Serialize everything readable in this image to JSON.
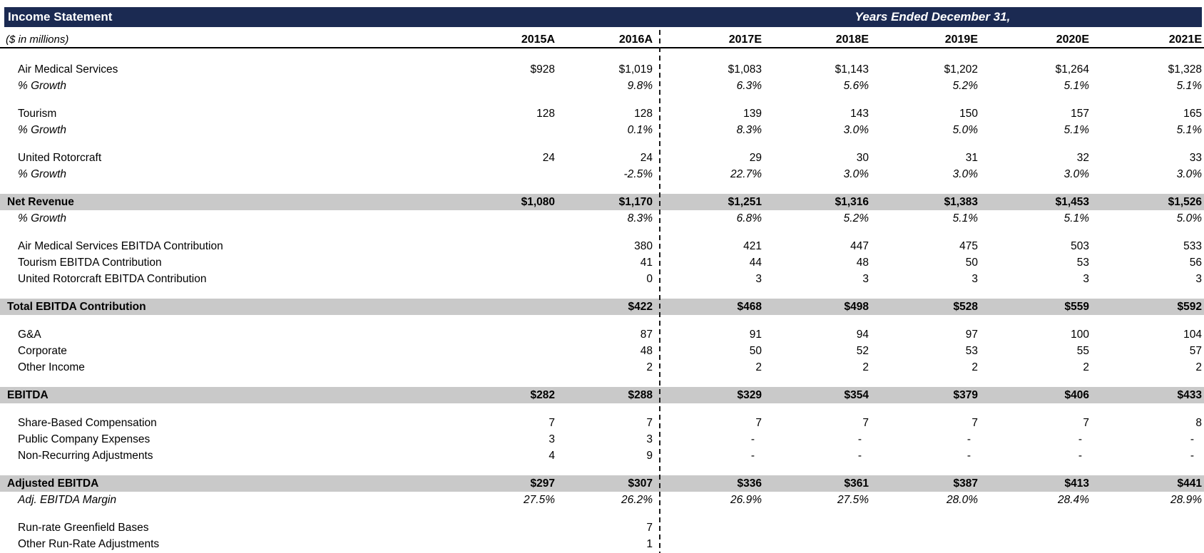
{
  "header": {
    "title": "Income Statement",
    "period_title": "Years Ended December 31,",
    "units_label": "($ in millions)",
    "columns": [
      "2015A",
      "2016A",
      "2017E",
      "2018E",
      "2019E",
      "2020E",
      "2021E"
    ]
  },
  "colors": {
    "title_bar": "#1b2a52",
    "subtotal_band": "#c9c9c9",
    "text": "#000000",
    "title_text": "#ffffff"
  },
  "table": {
    "rows": [
      {
        "label": "Air Medical Services",
        "style": "normal",
        "section_start": true,
        "values": [
          "$928",
          "$1,019",
          "$1,083",
          "$1,143",
          "$1,202",
          "$1,264",
          "$1,328"
        ]
      },
      {
        "label": "% Growth",
        "style": "growth",
        "section_start": false,
        "values": [
          "",
          "9.8%",
          "6.3%",
          "5.6%",
          "5.2%",
          "5.1%",
          "5.1%"
        ]
      },
      {
        "label": "Tourism",
        "style": "normal",
        "section_start": true,
        "values": [
          "128",
          "128",
          "139",
          "143",
          "150",
          "157",
          "165"
        ]
      },
      {
        "label": "% Growth",
        "style": "growth",
        "section_start": false,
        "values": [
          "",
          "0.1%",
          "8.3%",
          "3.0%",
          "5.0%",
          "5.1%",
          "5.1%"
        ]
      },
      {
        "label": "United Rotorcraft",
        "style": "normal",
        "section_start": true,
        "values": [
          "24",
          "24",
          "29",
          "30",
          "31",
          "32",
          "33"
        ]
      },
      {
        "label": "% Growth",
        "style": "growth",
        "section_start": false,
        "values": [
          "",
          "-2.5%",
          "22.7%",
          "3.0%",
          "3.0%",
          "3.0%",
          "3.0%"
        ]
      },
      {
        "label": "Net Revenue",
        "style": "total",
        "section_start": true,
        "values": [
          "$1,080",
          "$1,170",
          "$1,251",
          "$1,316",
          "$1,383",
          "$1,453",
          "$1,526"
        ]
      },
      {
        "label": "% Growth",
        "style": "growth",
        "section_start": false,
        "values": [
          "",
          "8.3%",
          "6.8%",
          "5.2%",
          "5.1%",
          "5.1%",
          "5.0%"
        ]
      },
      {
        "label": "Air Medical Services EBITDA Contribution",
        "style": "normal",
        "section_start": true,
        "values": [
          "",
          "380",
          "421",
          "447",
          "475",
          "503",
          "533"
        ]
      },
      {
        "label": "Tourism EBITDA Contribution",
        "style": "normal",
        "section_start": false,
        "values": [
          "",
          "41",
          "44",
          "48",
          "50",
          "53",
          "56"
        ]
      },
      {
        "label": "United Rotorcraft EBITDA Contribution",
        "style": "normal",
        "section_start": false,
        "values": [
          "",
          "0",
          "3",
          "3",
          "3",
          "3",
          "3"
        ]
      },
      {
        "label": "Total EBITDA Contribution",
        "style": "total",
        "section_start": true,
        "values": [
          "",
          "$422",
          "$468",
          "$498",
          "$528",
          "$559",
          "$592"
        ]
      },
      {
        "label": "G&A",
        "style": "normal",
        "section_start": true,
        "values": [
          "",
          "87",
          "91",
          "94",
          "97",
          "100",
          "104"
        ]
      },
      {
        "label": "Corporate",
        "style": "normal",
        "section_start": false,
        "values": [
          "",
          "48",
          "50",
          "52",
          "53",
          "55",
          "57"
        ]
      },
      {
        "label": "Other Income",
        "style": "normal",
        "section_start": false,
        "values": [
          "",
          "2",
          "2",
          "2",
          "2",
          "2",
          "2"
        ]
      },
      {
        "label": "EBITDA",
        "style": "total",
        "section_start": true,
        "values": [
          "$282",
          "$288",
          "$329",
          "$354",
          "$379",
          "$406",
          "$433"
        ]
      },
      {
        "label": "Share-Based Compensation",
        "style": "normal",
        "section_start": true,
        "values": [
          "7",
          "7",
          "7",
          "7",
          "7",
          "7",
          "8"
        ]
      },
      {
        "label": "Public Company Expenses",
        "style": "normal",
        "section_start": false,
        "values": [
          "3",
          "3",
          "-",
          "-",
          "-",
          "-",
          "-"
        ]
      },
      {
        "label": "Non-Recurring Adjustments",
        "style": "normal",
        "section_start": false,
        "values": [
          "4",
          "9",
          "-",
          "-",
          "-",
          "-",
          "-"
        ]
      },
      {
        "label": "Adjusted EBITDA",
        "style": "total",
        "section_start": true,
        "values": [
          "$297",
          "$307",
          "$336",
          "$361",
          "$387",
          "$413",
          "$441"
        ]
      },
      {
        "label": "Adj. EBITDA Margin",
        "style": "margin",
        "section_start": false,
        "values": [
          "27.5%",
          "26.2%",
          "26.9%",
          "27.5%",
          "28.0%",
          "28.4%",
          "28.9%"
        ]
      },
      {
        "label": "Run-rate Greenfield Bases",
        "style": "normal",
        "section_start": true,
        "values": [
          "",
          "7",
          "",
          "",
          "",
          "",
          ""
        ]
      },
      {
        "label": "Other Run-Rate Adjustments",
        "style": "normal",
        "section_start": false,
        "values": [
          "",
          "1",
          "",
          "",
          "",
          "",
          ""
        ]
      }
    ]
  }
}
